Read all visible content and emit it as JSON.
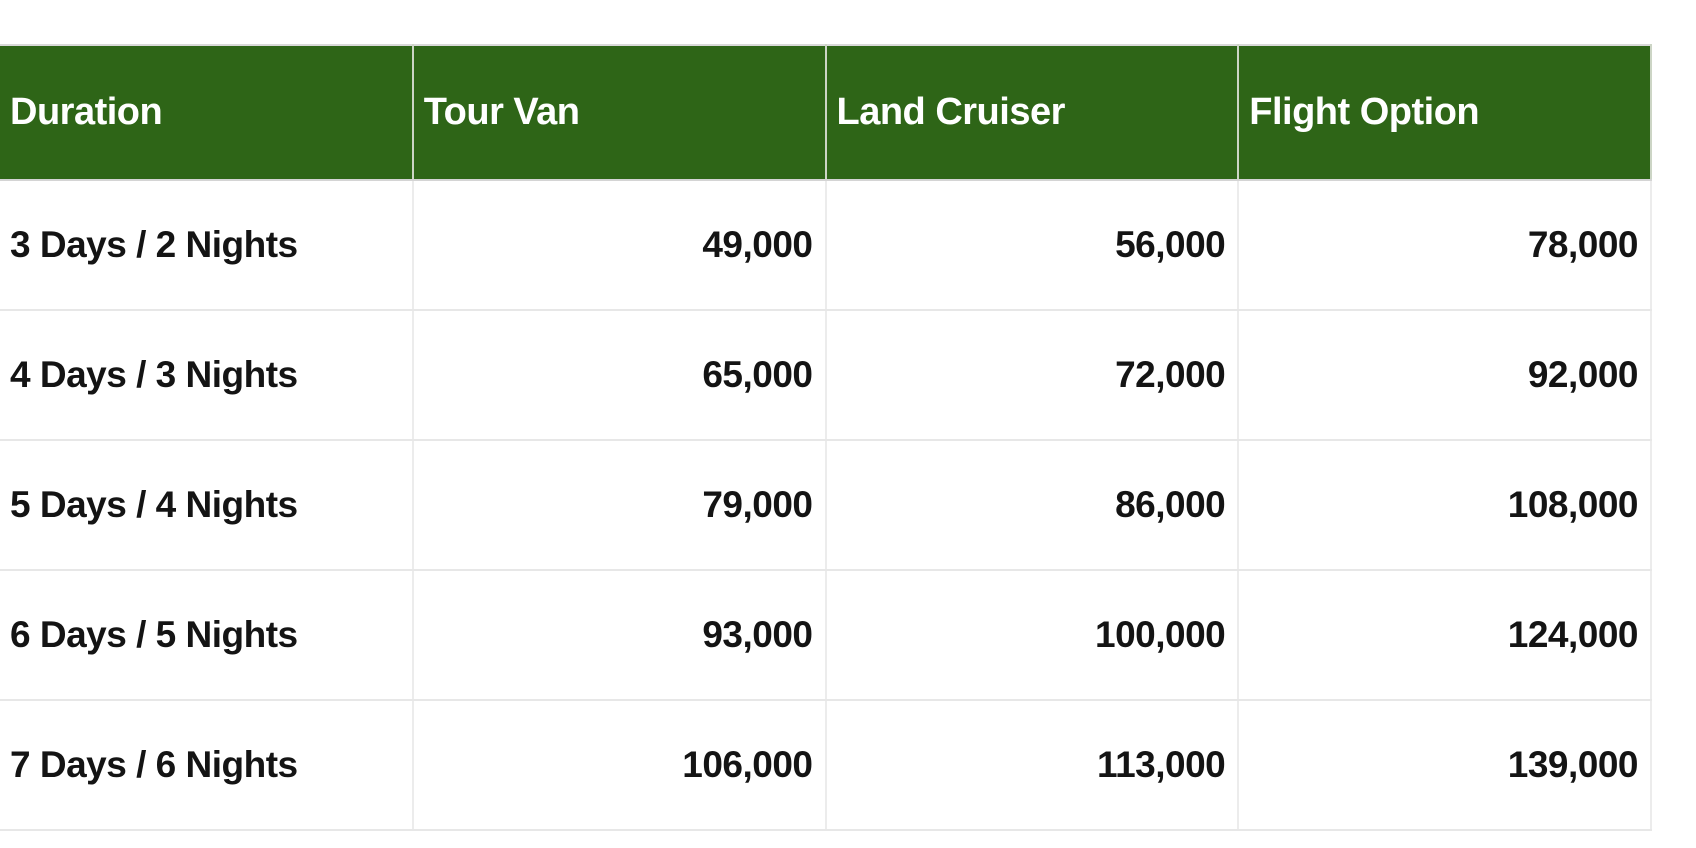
{
  "chart_data": {
    "type": "table",
    "columns": [
      "Duration",
      "Tour Van",
      "Land Cruiser",
      "Flight Option"
    ],
    "rows": [
      {
        "label": "3 Days / 2 Nights",
        "values": [
          49000,
          56000,
          78000
        ],
        "display": [
          "49,000",
          "56,000",
          "78,000"
        ]
      },
      {
        "label": "4 Days / 3 Nights",
        "values": [
          65000,
          72000,
          92000
        ],
        "display": [
          "65,000",
          "72,000",
          "92,000"
        ]
      },
      {
        "label": "5 Days / 4 Nights",
        "values": [
          79000,
          86000,
          108000
        ],
        "display": [
          "79,000",
          "86,000",
          "108,000"
        ]
      },
      {
        "label": "6 Days / 5 Nights",
        "values": [
          93000,
          100000,
          124000
        ],
        "display": [
          "93,000",
          "100,000",
          "124,000"
        ]
      },
      {
        "label": "7 Days / 6 Nights",
        "values": [
          106000,
          113000,
          139000
        ],
        "display": [
          "106,000",
          "113,000",
          "139,000"
        ]
      }
    ],
    "layout": {
      "header_align": "left",
      "label_column_align": "left",
      "value_columns_align": "right",
      "grid": "light-gray-lines"
    }
  },
  "colors": {
    "header_background": "#2e6517",
    "header_text": "#ffffff",
    "body_text": "#141414",
    "grid_line": "#e7e7e7",
    "header_divider": "#ccd5c5",
    "page_background": "#ffffff"
  }
}
